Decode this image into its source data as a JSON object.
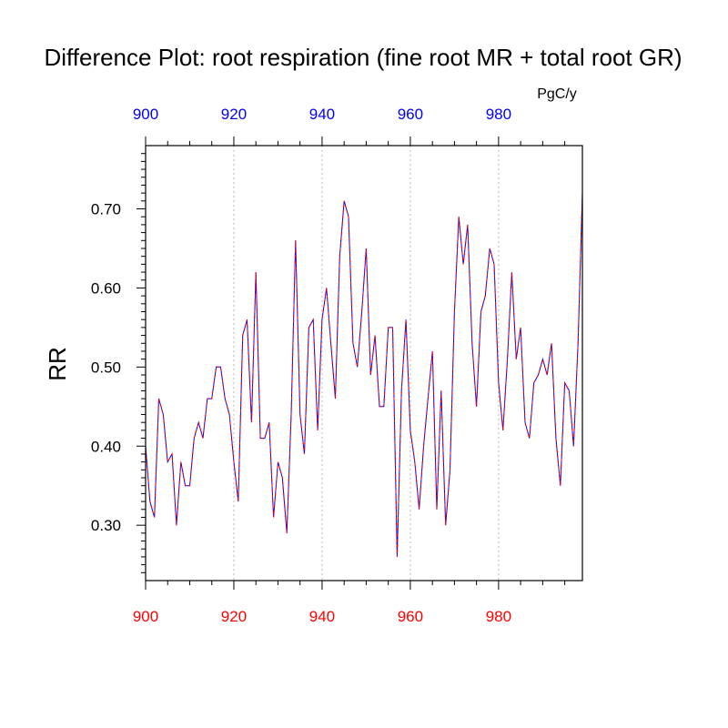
{
  "chart_data": {
    "type": "line",
    "title": "Difference Plot: root respiration (fine root MR + total root GR)",
    "ylabel": "RR",
    "units": "PgC/y",
    "xlim": [
      900,
      999
    ],
    "ylim": [
      0.23,
      0.78
    ],
    "x_ticks": [
      900,
      920,
      940,
      960,
      980
    ],
    "x_tick_labels_bottom": [
      "900",
      "920",
      "940",
      "960",
      "980"
    ],
    "x_tick_labels_top": [
      "900",
      "920",
      "940",
      "960",
      "980"
    ],
    "y_ticks": [
      0.3,
      0.4,
      0.5,
      0.6,
      0.7
    ],
    "y_tick_labels": [
      "0.30",
      "0.40",
      "0.50",
      "0.60",
      "0.70"
    ],
    "grid": "vertical-dotted",
    "colors": {
      "bottom_axis_labels": "#ff0000",
      "top_axis_labels": "#0000ff",
      "series_a": "#0000ff",
      "series_b": "#ff0000",
      "grid": "#bbbbbb"
    },
    "series": [
      {
        "x": [
          900,
          901,
          902,
          903,
          904,
          905,
          906,
          907,
          908,
          909,
          910,
          911,
          912,
          913,
          914,
          915,
          916,
          917,
          918,
          919,
          920,
          921,
          922,
          923,
          924,
          925,
          926,
          927,
          928,
          929,
          930,
          931,
          932,
          933,
          934,
          935,
          936,
          937,
          938,
          939,
          940,
          941,
          942,
          943,
          944,
          945,
          946,
          947,
          948,
          949,
          950,
          951,
          952,
          953,
          954,
          955,
          956,
          957,
          958,
          959,
          960,
          961,
          962,
          963,
          964,
          965,
          966,
          967,
          968,
          969,
          970,
          971,
          972,
          973,
          974,
          975,
          976,
          977,
          978,
          979,
          980,
          981,
          982,
          983,
          984,
          985,
          986,
          987,
          988,
          989,
          990,
          991,
          992,
          993,
          994,
          995,
          996,
          997,
          998,
          999
        ],
        "y": [
          0.4,
          0.33,
          0.31,
          0.46,
          0.44,
          0.38,
          0.39,
          0.3,
          0.38,
          0.35,
          0.35,
          0.41,
          0.43,
          0.41,
          0.46,
          0.46,
          0.5,
          0.5,
          0.46,
          0.44,
          0.38,
          0.33,
          0.54,
          0.56,
          0.43,
          0.62,
          0.41,
          0.41,
          0.43,
          0.31,
          0.38,
          0.36,
          0.29,
          0.44,
          0.66,
          0.44,
          0.39,
          0.55,
          0.56,
          0.42,
          0.56,
          0.6,
          0.53,
          0.46,
          0.64,
          0.71,
          0.69,
          0.53,
          0.5,
          0.57,
          0.65,
          0.49,
          0.54,
          0.45,
          0.45,
          0.55,
          0.55,
          0.26,
          0.47,
          0.56,
          0.42,
          0.38,
          0.32,
          0.4,
          0.46,
          0.52,
          0.32,
          0.47,
          0.3,
          0.37,
          0.57,
          0.69,
          0.63,
          0.68,
          0.53,
          0.45,
          0.57,
          0.59,
          0.65,
          0.63,
          0.48,
          0.42,
          0.51,
          0.62,
          0.51,
          0.55,
          0.43,
          0.41,
          0.48,
          0.49,
          0.51,
          0.49,
          0.53,
          0.41,
          0.35,
          0.48,
          0.47,
          0.4,
          0.53,
          0.72
        ]
      }
    ]
  }
}
